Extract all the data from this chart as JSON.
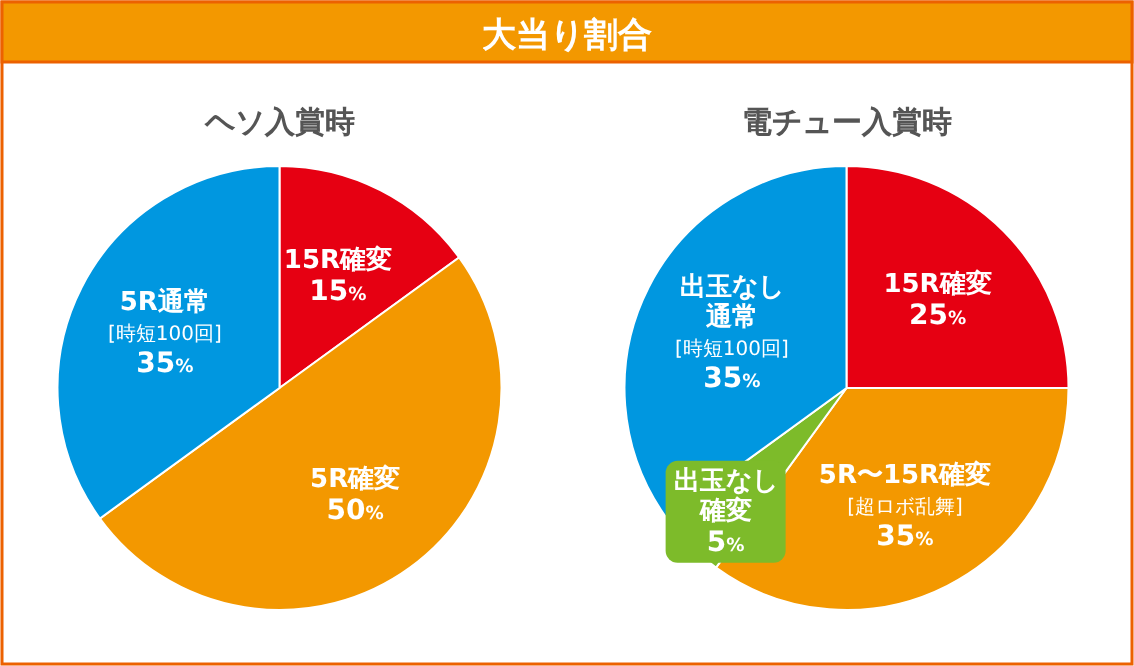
{
  "chart_data": [
    {
      "type": "other",
      "title": "大当り割合"
    },
    {
      "type": "pie",
      "title": "ヘソ入賞時",
      "categories": [
        "15R確変",
        "5R確変",
        "5R通常[時短100回]"
      ],
      "values": [
        15,
        50,
        35
      ],
      "colors": [
        "#e60012",
        "#f39800",
        "#0097e0"
      ],
      "value_labels": [
        "15%",
        "50%",
        "35%"
      ]
    },
    {
      "type": "pie",
      "title": "電チュー入賞時",
      "categories": [
        "15R確変",
        "5R〜15R確変[超ロボ乱舞]",
        "出玉なし確変",
        "出玉なし通常[時短100回]"
      ],
      "values": [
        25,
        35,
        5,
        35
      ],
      "colors": [
        "#e60012",
        "#f39800",
        "#7dbb2a",
        "#0097e0"
      ],
      "value_labels": [
        "25%",
        "35%",
        "5%",
        "35%"
      ]
    }
  ]
}
